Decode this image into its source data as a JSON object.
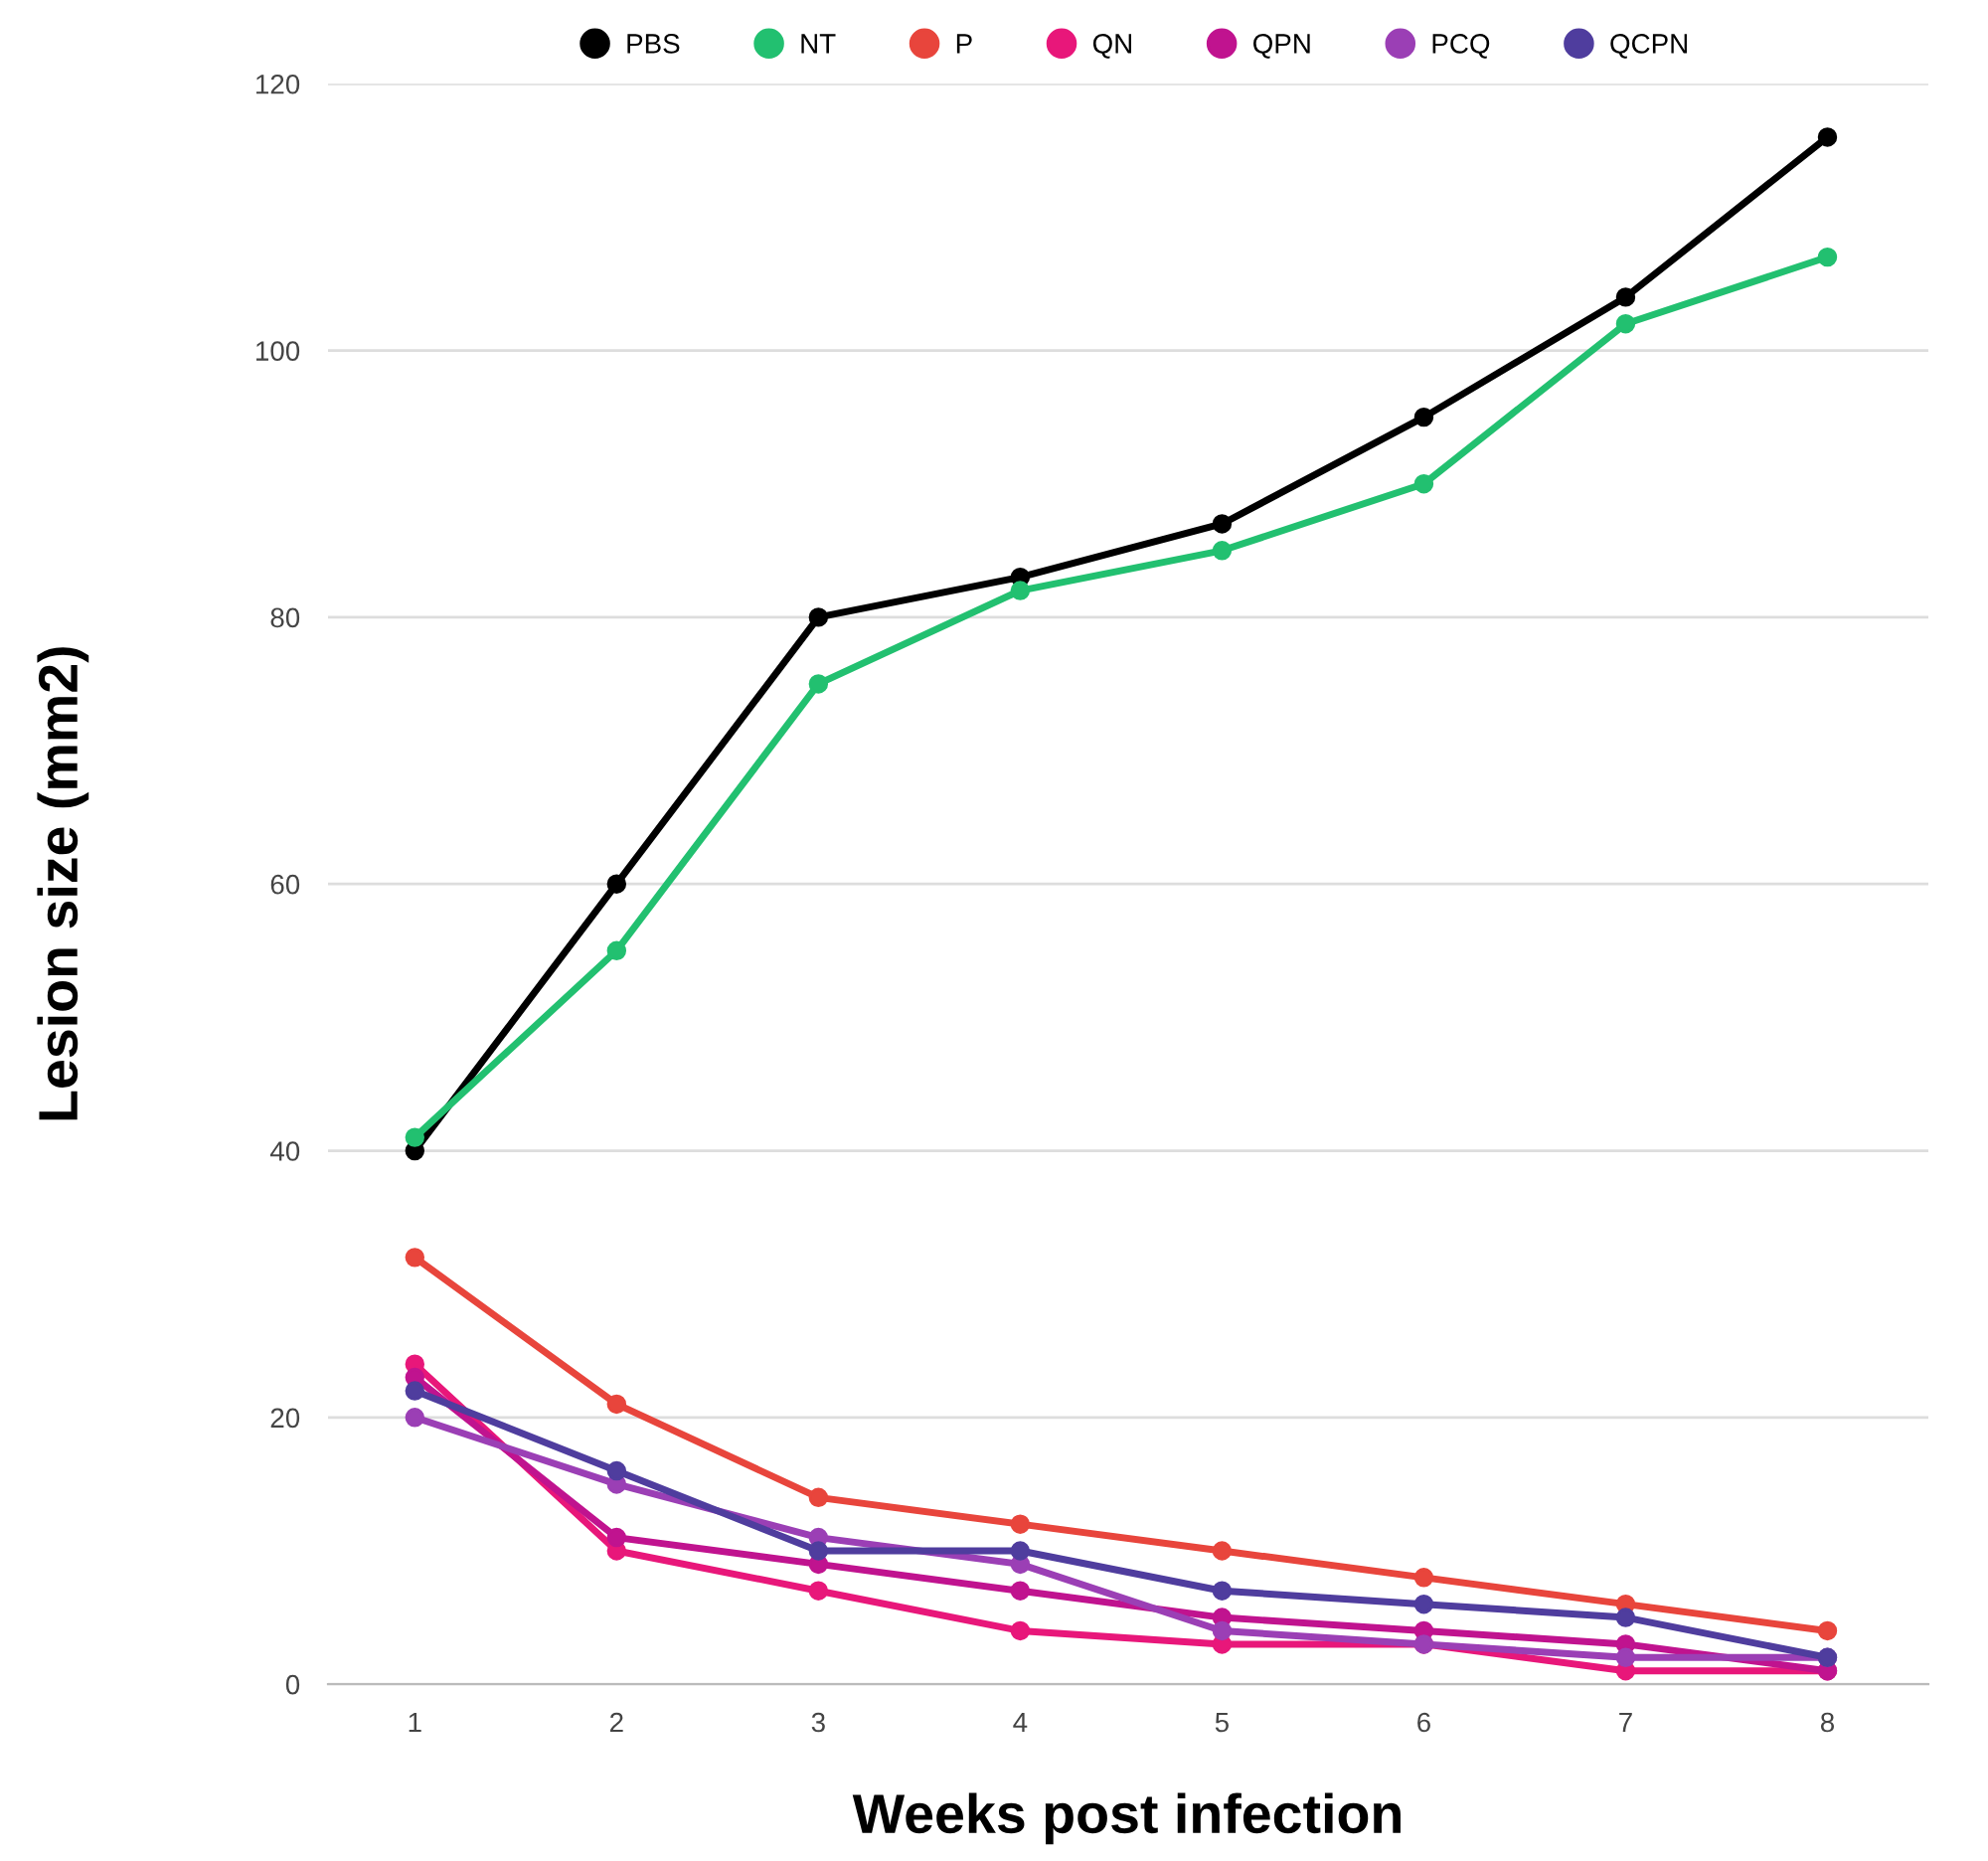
{
  "chart_data": {
    "type": "line",
    "xlabel": "Weeks post infection",
    "ylabel": "Lesion size (mm2)",
    "x": [
      1,
      2,
      3,
      4,
      5,
      6,
      7,
      8
    ],
    "xlim": [
      0.57,
      8.5
    ],
    "xticks": [
      1,
      2,
      3,
      4,
      5,
      6,
      7,
      8
    ],
    "ylim": [
      0,
      120
    ],
    "yticks": [
      0,
      20,
      40,
      60,
      80,
      100,
      120
    ],
    "grid": "y",
    "legend": "top",
    "marker": "circle",
    "line_style": "solid",
    "series": [
      {
        "name": "PBS",
        "color": "#000000",
        "values": [
          40,
          60,
          80,
          83,
          87,
          95,
          104,
          116
        ]
      },
      {
        "name": "NT",
        "color": "#22c070",
        "values": [
          41,
          55,
          75,
          82,
          85,
          90,
          102,
          107
        ]
      },
      {
        "name": "P",
        "color": "#e8453c",
        "values": [
          32,
          21,
          14,
          12,
          10,
          8,
          6,
          4
        ]
      },
      {
        "name": "QN",
        "color": "#e8177a",
        "values": [
          24,
          10,
          7,
          4,
          3,
          3,
          1,
          1
        ]
      },
      {
        "name": "QPN",
        "color": "#c0138f",
        "values": [
          23,
          11,
          9,
          7,
          5,
          4,
          3,
          1
        ]
      },
      {
        "name": "PCQ",
        "color": "#9b3fb5",
        "values": [
          20,
          15,
          11,
          9,
          4,
          3,
          2,
          2
        ]
      },
      {
        "name": "QCPN",
        "color": "#4f3d9e",
        "values": [
          22,
          16,
          10,
          10,
          7,
          6,
          5,
          2
        ]
      }
    ]
  }
}
